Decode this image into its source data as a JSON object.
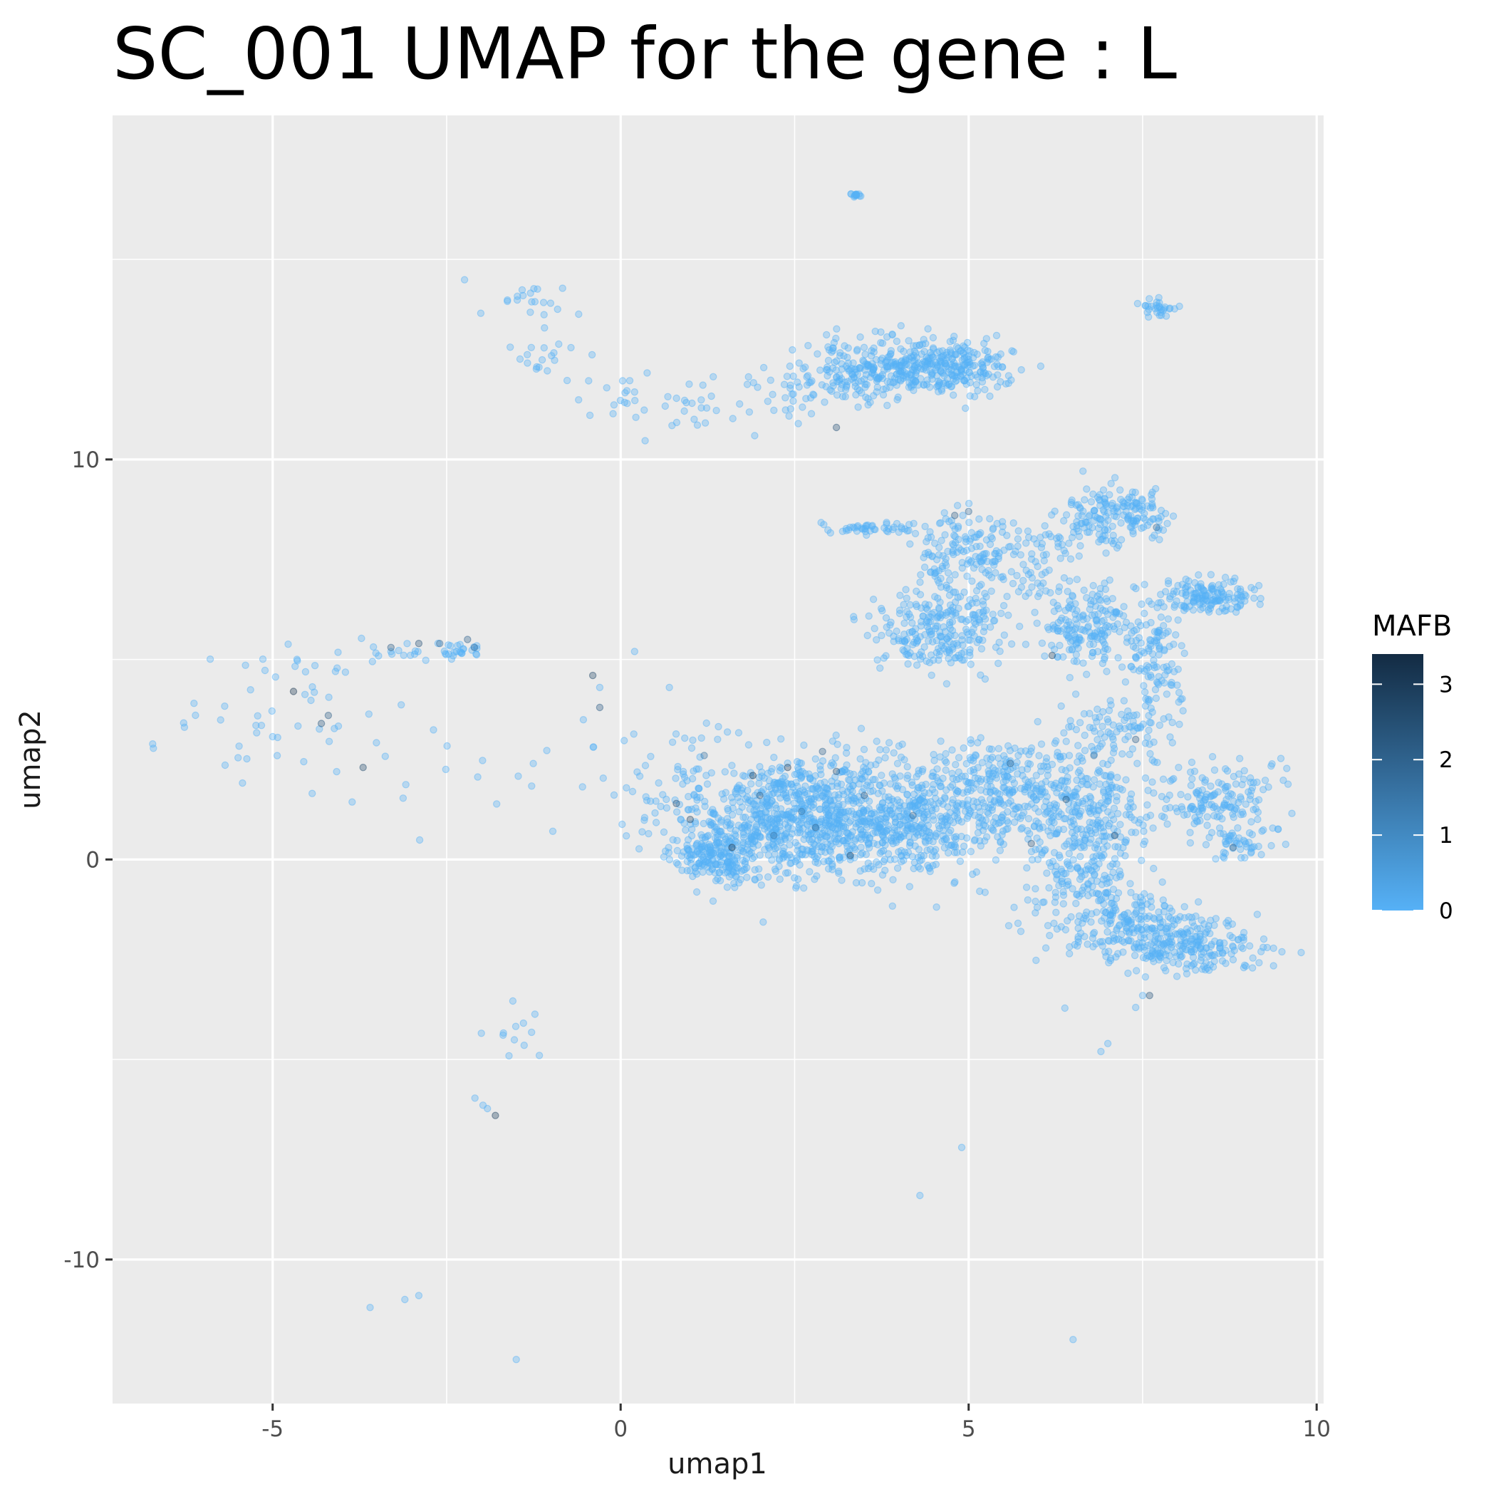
{
  "chart_data": {
    "type": "scatter",
    "title": "SC_001  UMAP for the gene :  L",
    "xlabel": "umap1",
    "ylabel": "umap2",
    "xlim": [
      -7.3,
      10.1
    ],
    "ylim": [
      -13.6,
      18.6
    ],
    "x_ticks": [
      -5,
      0,
      5,
      10
    ],
    "x_tick_labels": [
      "-5",
      "0",
      "5",
      "10"
    ],
    "y_ticks": [
      -10,
      0,
      10
    ],
    "y_tick_labels": [
      "-10",
      "0",
      "10"
    ],
    "grid": true,
    "panel_background": "#EBEBEB",
    "legend": {
      "title": "MAFB",
      "placement": "right",
      "ticks": [
        0,
        1,
        2,
        3
      ],
      "tick_labels": [
        "0",
        "1",
        "2",
        "3"
      ],
      "range": [
        0,
        3.4
      ],
      "color_low": "#56B1F7",
      "color_high": "#132B43"
    },
    "point_alpha": 0.35,
    "clusters": [
      {
        "x": 1.3,
        "y": 0.1,
        "sx": 0.28,
        "sy": 0.3,
        "n": 150
      },
      {
        "x": 2.2,
        "y": 0.9,
        "sx": 0.75,
        "sy": 0.75,
        "n": 550
      },
      {
        "x": 3.2,
        "y": 1.3,
        "sx": 0.7,
        "sy": 0.7,
        "n": 380
      },
      {
        "x": 4.2,
        "y": 0.8,
        "sx": 0.6,
        "sy": 0.65,
        "n": 320
      },
      {
        "x": 5.4,
        "y": 1.8,
        "sx": 0.7,
        "sy": 0.6,
        "n": 300
      },
      {
        "x": 6.6,
        "y": 0.5,
        "sx": 0.45,
        "sy": 1.3,
        "n": 420
      },
      {
        "x": 7.5,
        "y": -1.7,
        "sx": 0.55,
        "sy": 0.4,
        "n": 200
      },
      {
        "x": 8.2,
        "y": -2.2,
        "sx": 0.5,
        "sy": 0.3,
        "n": 180
      },
      {
        "x": 8.5,
        "y": 1.5,
        "sx": 0.45,
        "sy": 0.5,
        "n": 170
      },
      {
        "x": 8.9,
        "y": 0.5,
        "sx": 0.25,
        "sy": 0.25,
        "n": 45
      },
      {
        "x": 7.2,
        "y": 3.2,
        "sx": 0.35,
        "sy": 0.45,
        "n": 70
      },
      {
        "x": 4.6,
        "y": 5.8,
        "sx": 0.45,
        "sy": 0.55,
        "n": 260
      },
      {
        "x": 4.9,
        "y": 7.7,
        "sx": 0.35,
        "sy": 0.5,
        "n": 140
      },
      {
        "x": 6.7,
        "y": 5.8,
        "sx": 0.3,
        "sy": 0.45,
        "n": 170
      },
      {
        "x": 7.7,
        "y": 5.1,
        "sx": 0.25,
        "sy": 0.7,
        "n": 120
      },
      {
        "x": 8.4,
        "y": 6.6,
        "sx": 0.35,
        "sy": 0.2,
        "n": 150
      },
      {
        "x": 6.9,
        "y": 8.6,
        "sx": 0.35,
        "sy": 0.4,
        "n": 130
      },
      {
        "x": 7.5,
        "y": 8.6,
        "sx": 0.2,
        "sy": 0.3,
        "n": 60
      },
      {
        "x": 6.0,
        "y": 7.5,
        "sx": 0.35,
        "sy": 0.5,
        "n": 60
      },
      {
        "x": 3.8,
        "y": 12.3,
        "sx": 0.55,
        "sy": 0.35,
        "n": 260
      },
      {
        "x": 4.8,
        "y": 12.3,
        "sx": 0.4,
        "sy": 0.3,
        "n": 200
      },
      {
        "x": 2.8,
        "y": 11.8,
        "sx": 0.5,
        "sy": 0.3,
        "n": 60
      },
      {
        "x": 3.5,
        "y": 8.3,
        "sx": 0.35,
        "sy": 0.08,
        "n": 45
      },
      {
        "x": 7.75,
        "y": 13.8,
        "sx": 0.12,
        "sy": 0.1,
        "n": 30
      },
      {
        "x": 3.4,
        "y": 16.6,
        "sx": 0.06,
        "sy": 0.03,
        "n": 14
      },
      {
        "x": -1.2,
        "y": 14.0,
        "sx": 0.35,
        "sy": 0.2,
        "n": 20
      },
      {
        "x": -1.1,
        "y": 12.6,
        "sx": 0.3,
        "sy": 0.35,
        "n": 20
      },
      {
        "x": 0.4,
        "y": 11.5,
        "sx": 0.5,
        "sy": 0.35,
        "n": 28
      },
      {
        "x": 1.5,
        "y": 11.2,
        "sx": 0.45,
        "sy": 0.4,
        "n": 16
      },
      {
        "x": -2.3,
        "y": 5.2,
        "sx": 0.18,
        "sy": 0.12,
        "n": 24
      },
      {
        "x": -3.2,
        "y": 5.1,
        "sx": 0.3,
        "sy": 0.12,
        "n": 16
      },
      {
        "x": -4.5,
        "y": 3.5,
        "sx": 0.7,
        "sy": 1.0,
        "n": 40
      },
      {
        "x": -5.8,
        "y": 3.0,
        "sx": 0.5,
        "sy": 0.6,
        "n": 14
      },
      {
        "x": -1.3,
        "y": 2.3,
        "sx": 1.3,
        "sy": 0.9,
        "n": 26
      },
      {
        "x": 0.8,
        "y": 2.0,
        "sx": 0.3,
        "sy": 0.9,
        "n": 35
      },
      {
        "x": -1.5,
        "y": -4.4,
        "sx": 0.35,
        "sy": 0.3,
        "n": 12
      },
      {
        "x": -2.0,
        "y": -6.0,
        "sx": 0.1,
        "sy": 0.3,
        "n": 3
      }
    ],
    "single_points": [
      [
        -3.1,
        -11.0
      ],
      [
        -2.9,
        -10.9
      ],
      [
        -3.6,
        -11.2
      ],
      [
        -1.5,
        -12.5
      ],
      [
        4.3,
        -8.4
      ],
      [
        4.9,
        -7.2
      ],
      [
        6.5,
        -12.0
      ],
      [
        7.0,
        -4.6
      ],
      [
        6.9,
        -4.8
      ],
      [
        7.4,
        -3.7
      ],
      [
        7.5,
        -3.4
      ],
      [
        0.7,
        4.3
      ],
      [
        0.2,
        5.2
      ],
      [
        -0.3,
        4.3
      ]
    ],
    "dark_points": [
      [
        2.4,
        2.3
      ],
      [
        2.0,
        1.6
      ],
      [
        1.2,
        2.6
      ],
      [
        0.8,
        1.4
      ],
      [
        1.6,
        0.3
      ],
      [
        2.8,
        0.8
      ],
      [
        3.1,
        2.2
      ],
      [
        2.6,
        1.2
      ],
      [
        3.5,
        1.6
      ],
      [
        4.2,
        1.1
      ],
      [
        3.3,
        0.1
      ],
      [
        1.9,
        2.1
      ],
      [
        2.2,
        0.6
      ],
      [
        2.9,
        2.7
      ],
      [
        1.0,
        1.0
      ],
      [
        5.6,
        2.4
      ],
      [
        6.4,
        1.5
      ],
      [
        6.8,
        2.6
      ],
      [
        7.1,
        0.6
      ],
      [
        8.8,
        0.3
      ],
      [
        3.1,
        10.8
      ],
      [
        -4.7,
        4.2
      ],
      [
        -3.7,
        2.3
      ],
      [
        -4.2,
        3.6
      ],
      [
        -2.2,
        5.5
      ],
      [
        -2.9,
        5.4
      ],
      [
        -1.8,
        -6.4
      ],
      [
        7.6,
        -3.4
      ],
      [
        -0.4,
        4.6
      ],
      [
        -0.3,
        3.8
      ],
      [
        5.0,
        8.7
      ],
      [
        4.8,
        8.6
      ],
      [
        7.7,
        8.3
      ],
      [
        7.4,
        3.0
      ],
      [
        6.2,
        5.1
      ],
      [
        -3.3,
        5.3
      ],
      [
        -2.6,
        5.4
      ],
      [
        -4.3,
        3.4
      ],
      [
        -2.1,
        5.3
      ],
      [
        5.9,
        0.4
      ]
    ],
    "dark_values": [
      2.8,
      2.1,
      1.6,
      2.5,
      3.1,
      1.9,
      2.4,
      1.4,
      2.2,
      1.8,
      2.6,
      3.0,
      1.5,
      2.0,
      2.7,
      1.9,
      2.3,
      1.6,
      2.5,
      2.0,
      2.4,
      3.2,
      2.6,
      2.1,
      2.0,
      2.4,
      2.9,
      2.3,
      2.7,
      2.2,
      1.8,
      2.1,
      1.7,
      2.0,
      2.6,
      2.1,
      1.8,
      2.3,
      1.7,
      2.2
    ]
  }
}
